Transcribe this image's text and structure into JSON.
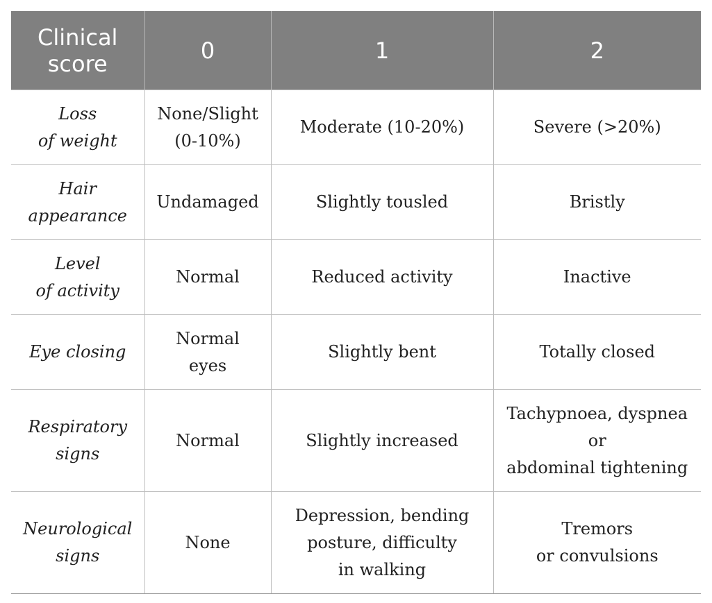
{
  "table": {
    "headers": [
      [
        "Clinical",
        "score"
      ],
      [
        "0"
      ],
      [
        "1"
      ],
      [
        "2"
      ]
    ],
    "rows": [
      {
        "label": [
          "Loss",
          "of weight"
        ],
        "score_0": [
          "None/Slight",
          "(0-10%)"
        ],
        "score_1": [
          "Moderate (10-20%)"
        ],
        "score_2": [
          "Severe (>20%)"
        ]
      },
      {
        "label": [
          "Hair",
          "appearance"
        ],
        "score_0": [
          "Undamaged"
        ],
        "score_1": [
          "Slightly tousled"
        ],
        "score_2": [
          "Bristly"
        ]
      },
      {
        "label": [
          "Level",
          "of activity"
        ],
        "score_0": [
          "Normal"
        ],
        "score_1": [
          "Reduced activity"
        ],
        "score_2": [
          "Inactive"
        ]
      },
      {
        "label": [
          "Eye closing"
        ],
        "score_0": [
          "Normal",
          "eyes"
        ],
        "score_1": [
          "Slightly bent"
        ],
        "score_2": [
          "Totally closed"
        ]
      },
      {
        "label": [
          "Respiratory",
          "signs"
        ],
        "score_0": [
          "Normal"
        ],
        "score_1": [
          "Slightly increased"
        ],
        "score_2": [
          "Tachypnoea, dyspnea",
          "or",
          "abdominal tightening"
        ]
      },
      {
        "label": [
          "Neurological",
          "signs"
        ],
        "score_0": [
          "None"
        ],
        "score_1": [
          "Depression, bending",
          "posture, difficulty",
          "in walking"
        ],
        "score_2": [
          "Tremors",
          "or convulsions"
        ]
      }
    ]
  },
  "colors": {
    "header_bg": "#808080",
    "header_text": "#ffffff",
    "body_text": "#222222",
    "grid": "#bdbdbd"
  }
}
